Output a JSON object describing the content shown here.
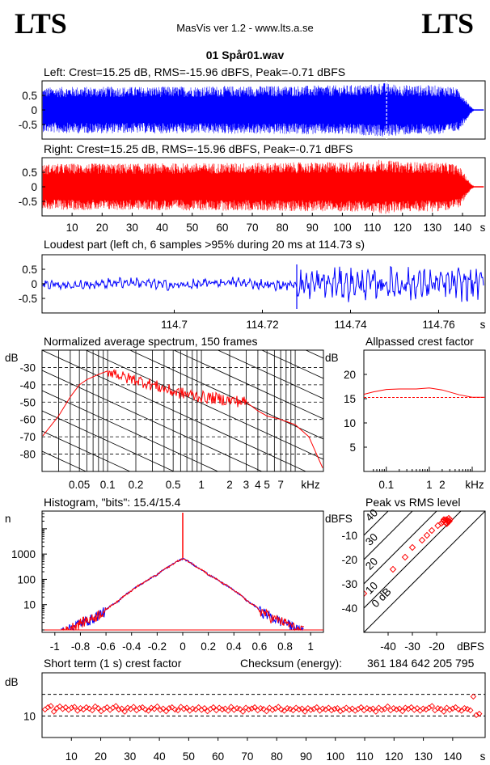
{
  "header": {
    "logo_left": "LTS",
    "logo_right": "LTS",
    "app_title": "MasVis ver 1.2 - www.lts.a.se",
    "file_name": "01 Spår01.wav"
  },
  "checksum": {
    "label": "Checksum (energy):",
    "value": "361 184 642 205 795"
  },
  "chart_data": [
    {
      "id": "left",
      "type": "line",
      "title": "Left: Crest=15.25 dB, RMS=-15.96 dBFS, Peak=-0.71 dBFS",
      "color": "#0000ff",
      "yticks": [
        0.5,
        0,
        -0.5
      ],
      "ytick_labels": [
        "0.5",
        "0",
        "-0.5"
      ],
      "ylim": [
        -1,
        1
      ],
      "xlim": [
        0,
        147
      ],
      "envelope": {
        "t": [
          0,
          2,
          10,
          30,
          60,
          90,
          100,
          110,
          113,
          116,
          120,
          130,
          136,
          139,
          141,
          142.5,
          144,
          147
        ],
        "amp": [
          0.75,
          0.78,
          0.8,
          0.8,
          0.82,
          0.84,
          0.85,
          0.88,
          0.95,
          0.9,
          0.86,
          0.85,
          0.82,
          0.7,
          0.4,
          0.15,
          0.0,
          0.0
        ]
      },
      "marker_time_s": 114.73
    },
    {
      "id": "right",
      "type": "line",
      "title": "Right: Crest=15.25 dB, RMS=-15.96 dBFS, Peak=-0.71 dBFS",
      "color": "#ff0000",
      "yticks": [
        0.5,
        0,
        -0.5
      ],
      "ytick_labels": [
        "0.5",
        "0",
        "-0.5"
      ],
      "ylim": [
        -1,
        1
      ],
      "xlim": [
        0,
        147
      ],
      "xticks": [
        10,
        20,
        30,
        40,
        50,
        60,
        70,
        80,
        90,
        100,
        110,
        120,
        130,
        140
      ],
      "xtick_labels": [
        "10",
        "20",
        "30",
        "40",
        "50",
        "60",
        "70",
        "80",
        "90",
        "100",
        "110",
        "120",
        "130",
        "140"
      ],
      "xunit": "s",
      "envelope": {
        "t": [
          0,
          2,
          10,
          30,
          60,
          90,
          100,
          110,
          113,
          116,
          120,
          130,
          136,
          139,
          141,
          142.5,
          144,
          147
        ],
        "amp": [
          0.75,
          0.78,
          0.8,
          0.8,
          0.82,
          0.84,
          0.85,
          0.88,
          0.95,
          0.9,
          0.86,
          0.85,
          0.82,
          0.7,
          0.4,
          0.15,
          0.0,
          0.0
        ]
      }
    },
    {
      "id": "loudest",
      "type": "line",
      "title": "Loudest part (left  ch, 6 samples >95% during 20 ms at 114.73 s)",
      "color": "#0000ff",
      "yticks": [
        0.5,
        0,
        -0.5
      ],
      "ytick_labels": [
        "0.5",
        "0",
        "-0.5"
      ],
      "ylim": [
        -1,
        1
      ],
      "xlim": [
        114.67,
        114.77
      ],
      "xticks": [
        114.7,
        114.72,
        114.74,
        114.76
      ],
      "xtick_labels": [
        "114.7",
        "114.72",
        "114.74",
        "114.76"
      ],
      "xunit": "s",
      "event_time_s": 114.7278
    },
    {
      "id": "spectrum",
      "type": "line",
      "title": "Normalized average spectrum, 150 frames",
      "ylabel": "dB",
      "color": "#ff0000",
      "xscale": "log",
      "xlim": [
        0.02,
        20
      ],
      "ylim": [
        -90,
        -20
      ],
      "yticks": [
        -30,
        -40,
        -50,
        -60,
        -70,
        -80
      ],
      "ytick_labels": [
        "-30",
        "-40",
        "-50",
        "-60",
        "-70",
        "-80"
      ],
      "xticks": [
        0.05,
        0.1,
        0.2,
        0.5,
        1,
        2,
        3,
        4,
        5,
        7
      ],
      "xtick_labels": [
        "0.05",
        "0.1",
        "0.2",
        "0.5",
        "1",
        "2",
        "3",
        "4",
        "5",
        "7"
      ],
      "xunit": "kHz",
      "grid": true,
      "freq_khz": [
        0.02,
        0.03,
        0.04,
        0.05,
        0.06,
        0.08,
        0.1,
        0.12,
        0.15,
        0.2,
        0.3,
        0.5,
        0.8,
        1,
        1.5,
        2,
        3,
        4,
        5,
        7,
        10,
        14,
        20
      ],
      "level_db": [
        -70,
        -58,
        -47,
        -40,
        -37,
        -34,
        -32,
        -33,
        -36,
        -37,
        -40,
        -44,
        -46,
        -47,
        -48,
        -49,
        -50,
        -55,
        -58,
        -60,
        -63,
        -70,
        -89
      ]
    },
    {
      "id": "allpass_crest",
      "type": "line",
      "title": "Allpassed crest factor",
      "ylabel": "dB",
      "color": "#ff0000",
      "xscale": "log",
      "xlim": [
        0.03,
        20
      ],
      "ylim": [
        0,
        25
      ],
      "yticks": [
        20,
        15,
        10,
        5
      ],
      "ytick_labels": [
        "20",
        "15",
        "10",
        "5"
      ],
      "xticks": [
        0.1,
        1,
        2
      ],
      "xtick_labels": [
        "0.1",
        "1",
        "2"
      ],
      "xunit": "kHz",
      "reference_db": 15.25,
      "freq_khz": [
        0.03,
        0.05,
        0.1,
        0.2,
        0.5,
        1,
        2,
        5,
        10,
        20
      ],
      "crest_db": [
        15.9,
        16.4,
        16.9,
        17.0,
        17.0,
        17.2,
        16.8,
        15.8,
        15.3,
        15.3
      ]
    },
    {
      "id": "histogram",
      "type": "line",
      "title": "Histogram, \"bits\": 15.4/15.4",
      "ylabel": "n",
      "yscale": "log",
      "xlim": [
        -1.1,
        1.1
      ],
      "ylim": [
        1,
        50000
      ],
      "yticks": [
        1000,
        100,
        10
      ],
      "ytick_labels": [
        "1000",
        "100",
        "10"
      ],
      "xticks": [
        -1,
        -0.8,
        -0.6,
        -0.4,
        -0.2,
        0,
        0.2,
        0.4,
        0.6,
        0.8,
        1
      ],
      "xtick_labels": [
        "-1",
        "-0.8",
        "-0.6",
        "-0.4",
        "-0.2",
        "0",
        "0.2",
        "0.4",
        "0.6",
        "0.8",
        "1"
      ],
      "series": [
        {
          "channel": "left",
          "color": "#0000ff"
        },
        {
          "channel": "right",
          "color": "#ff0000"
        }
      ],
      "x": [
        0,
        0.1,
        0.2,
        0.3,
        0.4,
        0.5,
        0.6,
        0.7,
        0.8,
        0.9,
        0.95
      ],
      "counts": [
        650,
        330,
        150,
        75,
        35,
        14,
        6,
        3,
        2,
        1,
        1
      ]
    },
    {
      "id": "peak_vs_rms",
      "type": "scatter",
      "title": "Peak vs RMS level",
      "xlabel": "dBFS",
      "ylabel": "dBFS",
      "color": "#ff0000",
      "xlim": [
        -50,
        0
      ],
      "ylim": [
        -50,
        0
      ],
      "yticks": [
        -10,
        -20,
        -30,
        -40
      ],
      "ytick_labels": [
        "-10",
        "-20",
        "-30",
        "-40"
      ],
      "xticks": [
        -40,
        -30,
        -20
      ],
      "xtick_labels": [
        "-40",
        "-30",
        "-20"
      ],
      "diagonal_labels": [
        "40",
        "30",
        "20",
        "10",
        "0 dB"
      ],
      "diagonal_offsets_db": [
        40,
        30,
        20,
        10,
        0
      ],
      "points": [
        [
          -50,
          -34
        ],
        [
          -38,
          -24
        ],
        [
          -33,
          -19
        ],
        [
          -30,
          -15
        ],
        [
          -26,
          -12
        ],
        [
          -24,
          -10
        ],
        [
          -22,
          -8
        ],
        [
          -19.5,
          -6
        ],
        [
          -18,
          -5
        ],
        [
          -17.5,
          -4.5
        ],
        [
          -17,
          -4
        ],
        [
          -16.5,
          -4.5
        ],
        [
          -16,
          -3.5
        ],
        [
          -15.5,
          -4
        ],
        [
          -15,
          -3
        ],
        [
          -14.5,
          -3.5
        ],
        [
          -16,
          -5
        ],
        [
          -17,
          -3.5
        ],
        [
          -15.8,
          -5.2
        ],
        [
          -14.8,
          -4.2
        ]
      ]
    },
    {
      "id": "short_term_crest",
      "type": "scatter",
      "title": "Short term (1 s) crest factor",
      "ylabel": "dB",
      "color": "#ff0000",
      "xlim": [
        0,
        150
      ],
      "ylim": [
        5,
        20
      ],
      "yticks": [
        10
      ],
      "ytick_labels": [
        "10"
      ],
      "ref_lines_db": [
        10,
        15
      ],
      "xticks": [
        10,
        20,
        30,
        40,
        50,
        60,
        70,
        80,
        90,
        100,
        110,
        120,
        130,
        140
      ],
      "xtick_labels": [
        "10",
        "20",
        "30",
        "40",
        "50",
        "60",
        "70",
        "80",
        "90",
        "100",
        "110",
        "120",
        "130",
        "140"
      ],
      "xunit": "s",
      "values_db": [
        11.5,
        12.0,
        12.3,
        11.0,
        11.8,
        12.2,
        11.6,
        12.0,
        11.4,
        11.9,
        12.1,
        11.2,
        11.8,
        11.5,
        12.0,
        11.7,
        11.3,
        12.2,
        11.8,
        11.1,
        11.6,
        12.0,
        11.4,
        11.9,
        12.3,
        11.5,
        11.7,
        11.0,
        11.9,
        11.6,
        12.1,
        11.3,
        11.8,
        12.0,
        11.5,
        11.2,
        11.9,
        11.6,
        12.2,
        11.4,
        11.7,
        11.1,
        11.8,
        12.0,
        11.5,
        11.3,
        12.1,
        11.6,
        11.9,
        11.2,
        11.7,
        11.5,
        12.0,
        11.4,
        11.8,
        11.1,
        11.6,
        12.0,
        11.3,
        11.9,
        11.5,
        11.7,
        11.2,
        12.1,
        11.4,
        11.8,
        11.6,
        11.0,
        11.9,
        11.5,
        11.7,
        12.0,
        11.3,
        11.8,
        11.6,
        11.1,
        11.9,
        11.4,
        11.7,
        12.1,
        11.5,
        11.2,
        11.8,
        11.6,
        11.3,
        11.9,
        11.5,
        11.7,
        11.0,
        11.8,
        11.4,
        11.6,
        12.0,
        11.2,
        11.7,
        11.5,
        11.9,
        11.3,
        11.6,
        11.8,
        11.1,
        11.5,
        11.9,
        11.4,
        11.7,
        11.2,
        11.6,
        12.0,
        11.3,
        11.8,
        11.5,
        11.7,
        11.0,
        11.9,
        11.4,
        11.6,
        12.2,
        11.3,
        11.8,
        11.5,
        11.7,
        11.1,
        11.9,
        11.6,
        12.0,
        11.4,
        11.8,
        11.2,
        11.7,
        11.5,
        11.9,
        12.3,
        11.3,
        11.8,
        11.6,
        11.0,
        11.9,
        11.4,
        11.7,
        12.0,
        11.5,
        11.2,
        11.8,
        11.6,
        11.3,
        14.5,
        10.2,
        10.5
      ]
    }
  ]
}
